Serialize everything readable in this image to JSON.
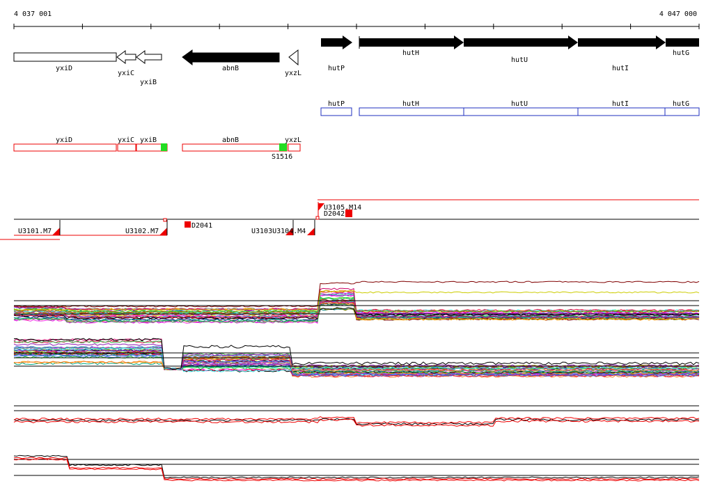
{
  "coords": {
    "start": "4 037 001",
    "end": "4 047 000"
  },
  "genes_arrows": [
    {
      "label": "yxiD",
      "fill": "#ffffff",
      "dir": "none"
    },
    {
      "label": "yxiC",
      "fill": "#ffffff",
      "dir": "left"
    },
    {
      "label": "yxiB",
      "fill": "#ffffff",
      "dir": "left"
    },
    {
      "label": "abnB",
      "fill": "#000000",
      "dir": "left"
    },
    {
      "label": "yxzL",
      "fill": "#ffffff",
      "dir": "left"
    },
    {
      "label": "hutP",
      "fill": "#000000",
      "dir": "right"
    },
    {
      "label": "hutH",
      "fill": "#000000",
      "dir": "right"
    },
    {
      "label": "hutU",
      "fill": "#000000",
      "dir": "right"
    },
    {
      "label": "hutI",
      "fill": "#000000",
      "dir": "right"
    },
    {
      "label": "hutG",
      "fill": "#000000",
      "dir": "right"
    }
  ],
  "blue_boxes": [
    "hutP",
    "hutH",
    "hutU",
    "hutI",
    "hutG"
  ],
  "red_boxes": [
    "yxiD",
    "yxiC",
    "yxiB",
    "abnB",
    "yxzL"
  ],
  "markers": {
    "green_label": "S1516"
  },
  "upshifts": [
    {
      "label": "U3101.M7"
    },
    {
      "label": "U3102.M7"
    },
    {
      "label": "D2041"
    },
    {
      "label": "U3103U3104.M4"
    },
    {
      "label": "U3105.M14"
    },
    {
      "label": "D2042"
    }
  ],
  "colors": {
    "accent_red": "#ee0000",
    "blue": "#1f2fbf",
    "green": "#22dd22",
    "black": "#000000"
  }
}
